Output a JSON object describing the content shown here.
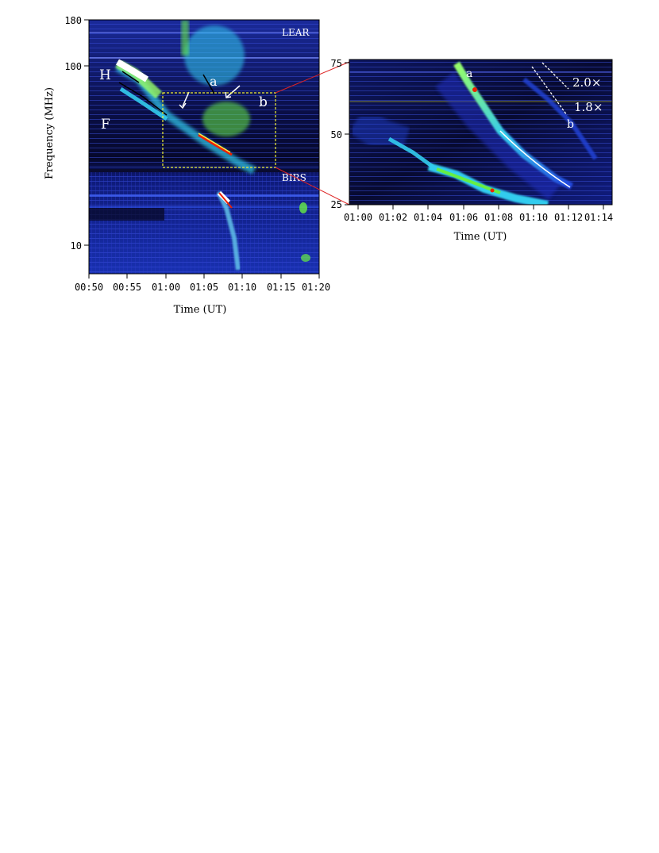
{
  "chart_data": [
    {
      "type": "heatmap",
      "title": "",
      "xlabel": "Time (UT)",
      "ylabel": "Frequency (MHz)",
      "y_scale": "log",
      "xlim": [
        "00:50",
        "01:20"
      ],
      "ylim": [
        6.5,
        180
      ],
      "x_tick_labels": [
        "00:50",
        "00:55",
        "01:00",
        "01:05",
        "01:10",
        "01:15",
        "01:20"
      ],
      "y_tick_labels": [
        "180",
        "100",
        "10"
      ],
      "y_tick_values": [
        180,
        100,
        10
      ],
      "instruments": [
        {
          "name": "LEAR",
          "frequency_range_mhz": [
            25,
            180
          ]
        },
        {
          "name": "BIRS",
          "frequency_range_mhz": [
            6.5,
            25
          ]
        }
      ],
      "annotations": [
        "H",
        "F",
        "a",
        "b",
        "LEAR",
        "BIRS"
      ],
      "zoom_box": {
        "time_range": [
          "01:00",
          "01:14:30"
        ],
        "frequency_range_mhz": [
          25,
          75
        ]
      }
    },
    {
      "type": "heatmap",
      "title": "",
      "xlabel": "Time (UT)",
      "ylabel": "",
      "y_scale": "linear",
      "xlim": [
        "00:59:30",
        "01:14:30"
      ],
      "ylim": [
        25,
        75
      ],
      "x_tick_labels": [
        "01:00",
        "01:02",
        "01:04",
        "01:06",
        "01:08",
        "01:10",
        "01:12",
        "01:14"
      ],
      "y_tick_labels": [
        "75",
        "50",
        "25"
      ],
      "y_tick_values": [
        75,
        50,
        25
      ],
      "annotations": [
        "a",
        "b",
        "2.0×",
        "1.8×"
      ]
    }
  ],
  "colors": {
    "background_dark": "#06071f",
    "blue": "#2233cc",
    "cyan": "#33ccee",
    "green": "#66ee44",
    "red": "#ee2200",
    "box_yellow": "#eeee33",
    "connector_red": "#dd2222"
  }
}
